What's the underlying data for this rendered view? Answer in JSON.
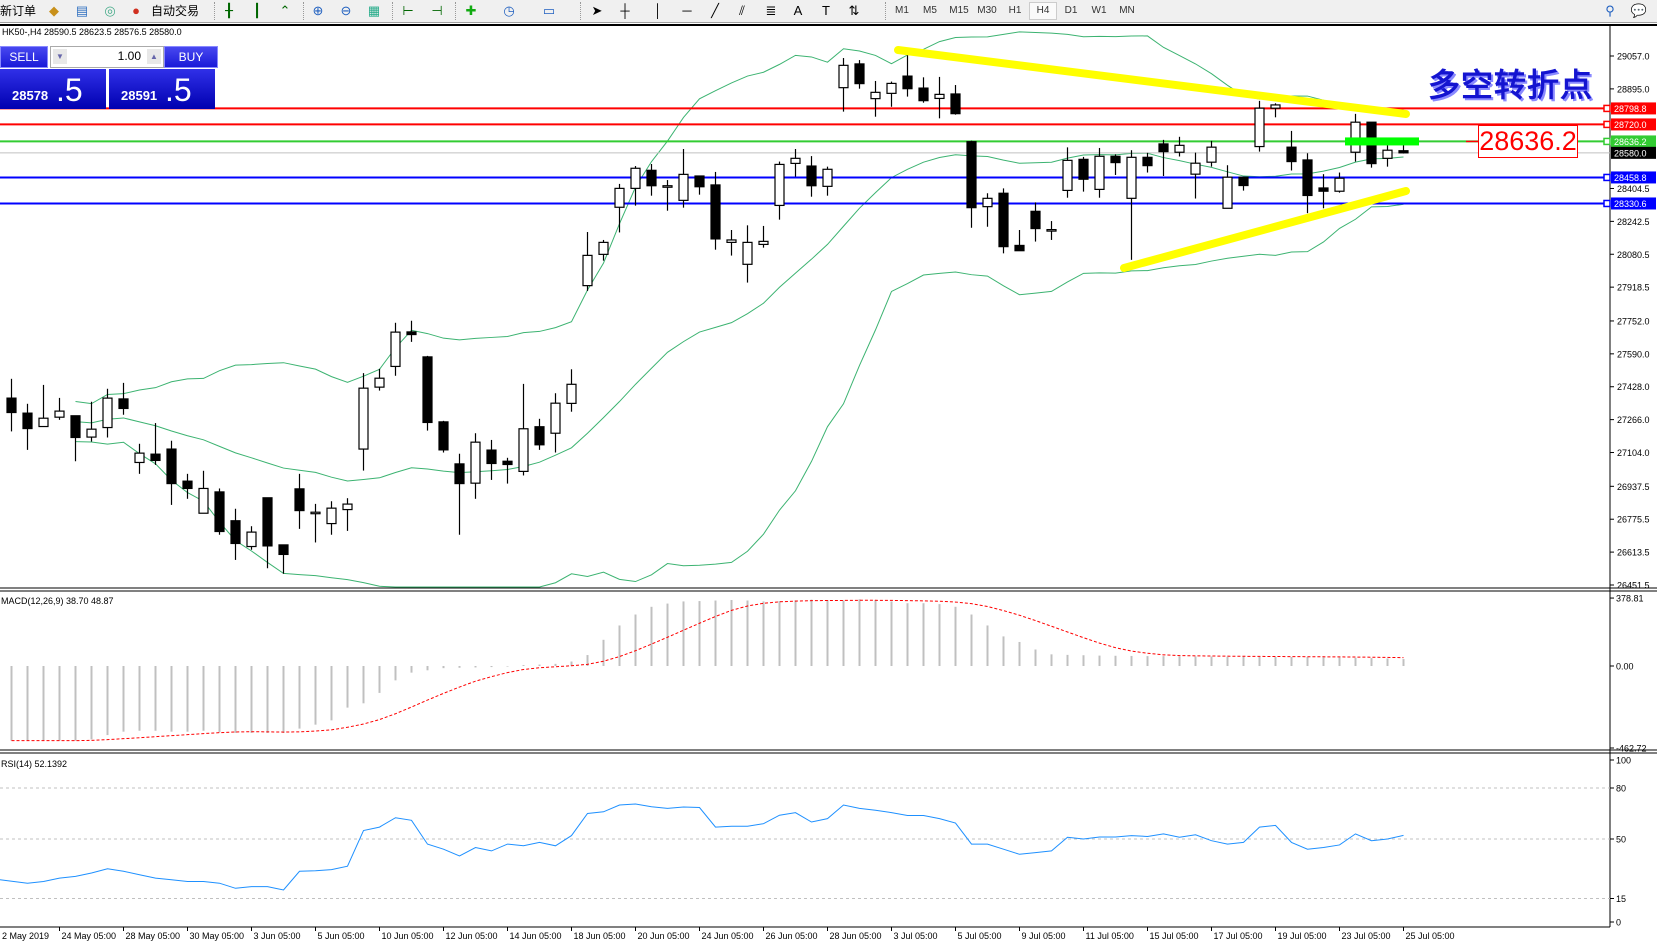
{
  "toolbar": {
    "new_order": "新订单",
    "auto_trading": "自动交易",
    "timeframes": [
      "M1",
      "M5",
      "M15",
      "M30",
      "H1",
      "H4",
      "D1",
      "W1",
      "MN"
    ],
    "active_timeframe": "H4"
  },
  "chart": {
    "symbol_header": "HK50-,H4  28590.5 28623.5 28576.5 28580.0",
    "annotation": "多空转折点",
    "price_callout": "28636.2",
    "current_price": "28580.0"
  },
  "trade_panel": {
    "sell_label": "SELL",
    "buy_label": "BUY",
    "lots": "1.00",
    "bid_main": "28578",
    "bid_frac": ".5",
    "ask_main": "28591",
    "ask_frac": ".5"
  },
  "colors": {
    "bollinger": "#3cb371",
    "resistance": "#ff0000",
    "pivot": "#33cc33",
    "support": "#0000ff",
    "trendline": "#ffff00",
    "macd_histogram": "#c0c0c0",
    "macd_signal": "#ff0000",
    "rsi": "#1e90ff"
  },
  "price_axis": {
    "ticks": [
      "29057.0",
      "28895.0",
      "28404.5",
      "28242.5",
      "28080.5",
      "27918.5",
      "27752.0",
      "27590.0",
      "27428.0",
      "27266.0",
      "27104.0",
      "26937.5",
      "26775.5",
      "26613.5",
      "26451.5"
    ]
  },
  "levels": [
    {
      "price": "28798.8",
      "color": "#ff0000"
    },
    {
      "price": "28720.0",
      "color": "#ff0000"
    },
    {
      "price": "28636.2",
      "color": "#33cc33"
    },
    {
      "price": "28458.8",
      "color": "#0000ff"
    },
    {
      "price": "28330.6",
      "color": "#0000ff"
    }
  ],
  "candles": [
    [
      27372,
      27467,
      27208,
      27301
    ],
    [
      27298,
      27344,
      27117,
      27222
    ],
    [
      27232,
      27437,
      27232,
      27273
    ],
    [
      27278,
      27373,
      27265,
      27308
    ],
    [
      27285,
      27285,
      27061,
      27178
    ],
    [
      27180,
      27354,
      27158,
      27219
    ],
    [
      27227,
      27418,
      27178,
      27372
    ],
    [
      27368,
      27447,
      27290,
      27321
    ],
    [
      27055,
      27147,
      26999,
      27101
    ],
    [
      27096,
      27249,
      27043,
      27065
    ],
    [
      27121,
      27162,
      26846,
      26951
    ],
    [
      26963,
      26999,
      26876,
      26927
    ],
    [
      26805,
      27014,
      26805,
      26927
    ],
    [
      26910,
      26927,
      26699,
      26715
    ],
    [
      26768,
      26827,
      26575,
      26656
    ],
    [
      26641,
      26741,
      26625,
      26712
    ],
    [
      26881,
      26881,
      26534,
      26644
    ],
    [
      26649,
      26649,
      26507,
      26602
    ],
    [
      26925,
      26999,
      26728,
      26818
    ],
    [
      26810,
      26851,
      26661,
      26810
    ],
    [
      26754,
      26864,
      26699,
      26830
    ],
    [
      26823,
      26879,
      26718,
      26850
    ],
    [
      27121,
      27495,
      27015,
      27421
    ],
    [
      27426,
      27516,
      27409,
      27470
    ],
    [
      27528,
      27743,
      27482,
      27697
    ],
    [
      27698,
      27753,
      27649,
      27685
    ],
    [
      27575,
      27580,
      27212,
      27252
    ],
    [
      27255,
      27260,
      27104,
      27117
    ],
    [
      27048,
      27098,
      26699,
      26951
    ],
    [
      26953,
      27199,
      26876,
      27155
    ],
    [
      27116,
      27166,
      26969,
      27050
    ],
    [
      27061,
      27078,
      26951,
      27045
    ],
    [
      27011,
      27442,
      26991,
      27221
    ],
    [
      27231,
      27270,
      27117,
      27142
    ],
    [
      27199,
      27396,
      27104,
      27347
    ],
    [
      27346,
      27514,
      27305,
      27440
    ],
    [
      27926,
      28190,
      27900,
      28075
    ],
    [
      28080,
      28151,
      28049,
      28139
    ],
    [
      28312,
      28427,
      28188,
      28405
    ],
    [
      28405,
      28515,
      28320,
      28504
    ],
    [
      28494,
      28525,
      28369,
      28418
    ],
    [
      28418,
      28446,
      28295,
      28418
    ],
    [
      28346,
      28599,
      28310,
      28474
    ],
    [
      28466,
      28466,
      28374,
      28413
    ],
    [
      28422,
      28486,
      28103,
      28156
    ],
    [
      28139,
      28200,
      28074,
      28151
    ],
    [
      28031,
      28223,
      27941,
      28139
    ],
    [
      28129,
      28220,
      28113,
      28144
    ],
    [
      28321,
      28537,
      28251,
      28523
    ],
    [
      28528,
      28599,
      28463,
      28553
    ],
    [
      28515,
      28564,
      28364,
      28418
    ],
    [
      28415,
      28512,
      28369,
      28499
    ],
    [
      28901,
      29047,
      28783,
      29011
    ],
    [
      29018,
      29037,
      28896,
      28921
    ],
    [
      28847,
      28934,
      28758,
      28878
    ],
    [
      28873,
      28931,
      28807,
      28922
    ],
    [
      28958,
      29062,
      28857,
      28896
    ],
    [
      28899,
      28952,
      28827,
      28837
    ],
    [
      28848,
      28954,
      28750,
      28868
    ],
    [
      28870,
      28914,
      28768,
      28773
    ],
    [
      28635,
      28640,
      28211,
      28310
    ],
    [
      28315,
      28381,
      28216,
      28356
    ],
    [
      28381,
      28405,
      28085,
      28118
    ],
    [
      28124,
      28200,
      28098,
      28098
    ],
    [
      28292,
      28336,
      28143,
      28207
    ],
    [
      28202,
      28244,
      28151,
      28202
    ],
    [
      28395,
      28607,
      28359,
      28543
    ],
    [
      28548,
      28560,
      28389,
      28450
    ],
    [
      28400,
      28604,
      28359,
      28563
    ],
    [
      28563,
      28573,
      28471,
      28532
    ],
    [
      28356,
      28593,
      28053,
      28558
    ],
    [
      28558,
      28580,
      28483,
      28517
    ],
    [
      28624,
      28644,
      28466,
      28586
    ],
    [
      28583,
      28659,
      28562,
      28617
    ],
    [
      28475,
      28581,
      28355,
      28529
    ],
    [
      28534,
      28639,
      28512,
      28608
    ],
    [
      28307,
      28519,
      28307,
      28460
    ],
    [
      28460,
      28460,
      28394,
      28419
    ],
    [
      28611,
      28836,
      28586,
      28800
    ],
    [
      28800,
      28824,
      28755,
      28816
    ],
    [
      28608,
      28688,
      28493,
      28537
    ],
    [
      28545,
      28578,
      28283,
      28370
    ],
    [
      28407,
      28475,
      28307,
      28391
    ],
    [
      28391,
      28483,
      28384,
      28455
    ],
    [
      28583,
      28772,
      28537,
      28731
    ],
    [
      28731,
      28731,
      28507,
      28527
    ],
    [
      28553,
      28619,
      28512,
      28593
    ],
    [
      28590.5,
      28623.5,
      28576.5,
      28580.0
    ]
  ],
  "macd": {
    "label": "MACD(12,26,9) 38.70 48.87",
    "axis": [
      "378.81",
      "0.00",
      "-462.72"
    ],
    "histogram": [
      -416,
      -416,
      -416,
      -416,
      -416,
      -409,
      -385,
      -366,
      -361,
      -361,
      -366,
      -366,
      -361,
      -370,
      -373,
      -373,
      -373,
      -373,
      -349,
      -327,
      -303,
      -232,
      -208,
      -150,
      -80,
      -37,
      -24,
      -12,
      -10,
      -8,
      -6,
      -3,
      5,
      8,
      12,
      25,
      61,
      146,
      226,
      287,
      330,
      348,
      360,
      362,
      365,
      368,
      365,
      360,
      362,
      366,
      370,
      368,
      365,
      372,
      368,
      360,
      350,
      350,
      345,
      330,
      287,
      226,
      165,
      134,
      92,
      65,
      62,
      60,
      58,
      57,
      56,
      55,
      55,
      54,
      53,
      53,
      52,
      52,
      51,
      51,
      50,
      50,
      49,
      48,
      46,
      44,
      42,
      38.7
    ]
  },
  "rsi": {
    "label": "RSI(14) 52.1392",
    "axis": [
      "100",
      "80",
      "50",
      "15",
      "0"
    ],
    "values": [
      26,
      24,
      25,
      27,
      28,
      30,
      32.5,
      31,
      29,
      27,
      26,
      25,
      25,
      24,
      21,
      22,
      22,
      20,
      31,
      31.3,
      32,
      34,
      55,
      57,
      62.5,
      61,
      47,
      44,
      40,
      45,
      43,
      47,
      46,
      48,
      46,
      52,
      65,
      66,
      70,
      70.6,
      69,
      68,
      68.8,
      68.5,
      57,
      57.5,
      57.5,
      59,
      64,
      65.5,
      60,
      62,
      70,
      68,
      66.9,
      65.5,
      63.8,
      63.8,
      62,
      59.4,
      47,
      47,
      44,
      41,
      42,
      43,
      51,
      50,
      51.2,
      51.2,
      52,
      51.5,
      53,
      51,
      52.5,
      49,
      47,
      48,
      57,
      58,
      48,
      44,
      45,
      46.5,
      53,
      49,
      50,
      52.14
    ]
  },
  "time_axis": {
    "labels": [
      "2 May 2019",
      "24 May 05:00",
      "28 May 05:00",
      "30 May 05:00",
      "3 Jun 05:00",
      "5 Jun 05:00",
      "10 Jun 05:00",
      "12 Jun 05:00",
      "14 Jun 05:00",
      "18 Jun 05:00",
      "20 Jun 05:00",
      "24 Jun 05:00",
      "26 Jun 05:00",
      "28 Jun 05:00",
      "3 Jul 05:00",
      "5 Jul 05:00",
      "9 Jul 05:00",
      "11 Jul 05:00",
      "15 Jul 05:00",
      "17 Jul 05:00",
      "19 Jul 05:00",
      "23 Jul 05:00",
      "25 Jul 05:00"
    ]
  }
}
